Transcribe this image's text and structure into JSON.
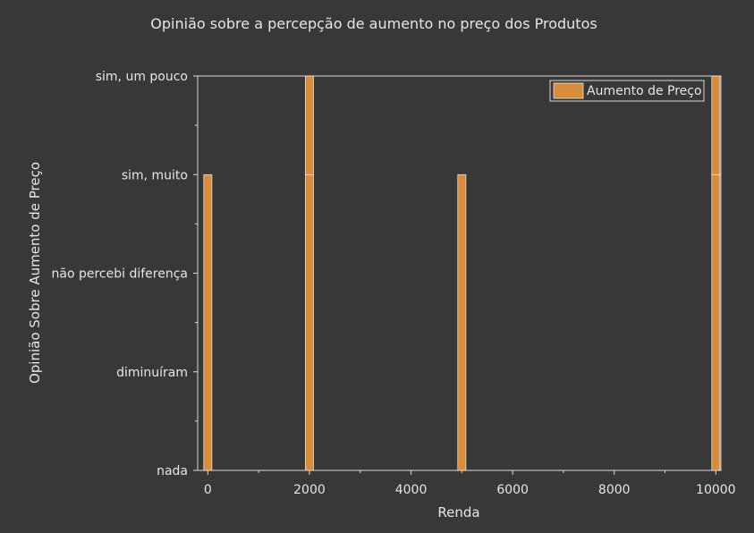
{
  "chart_data": {
    "type": "bar",
    "title": "Opinião sobre a percepção de aumento no preço dos Produtos",
    "xlabel": "Renda",
    "ylabel": "Opinião Sobre Aumento de Preço",
    "x_ticks": [
      0,
      2000,
      4000,
      6000,
      8000,
      10000
    ],
    "x_tick_labels": [
      "0",
      "2000",
      "4000",
      "6000",
      "8000",
      "10000"
    ],
    "xlim": [
      -200,
      10100
    ],
    "y_categories": [
      "nada",
      "diminuíram",
      "não percebi diferença",
      "sim, muito",
      "sim, um pouco"
    ],
    "ylim": [
      0,
      4
    ],
    "bar_width": 160,
    "series": [
      {
        "name": "Aumento de Preço",
        "color": "#d98c3a",
        "bars": [
          {
            "x": 0,
            "segments": [
              {
                "from": 0,
                "to": 3
              }
            ]
          },
          {
            "x": 2000,
            "segments": [
              {
                "from": 0,
                "to": 3
              },
              {
                "from": 3,
                "to": 4
              }
            ]
          },
          {
            "x": 5000,
            "segments": [
              {
                "from": 0,
                "to": 3
              }
            ]
          },
          {
            "x": 10000,
            "segments": [
              {
                "from": 0,
                "to": 3
              },
              {
                "from": 3,
                "to": 4
              }
            ]
          }
        ]
      }
    ],
    "legend": {
      "position": "top-right",
      "entries": [
        "Aumento de Preço"
      ]
    },
    "grid": false
  }
}
